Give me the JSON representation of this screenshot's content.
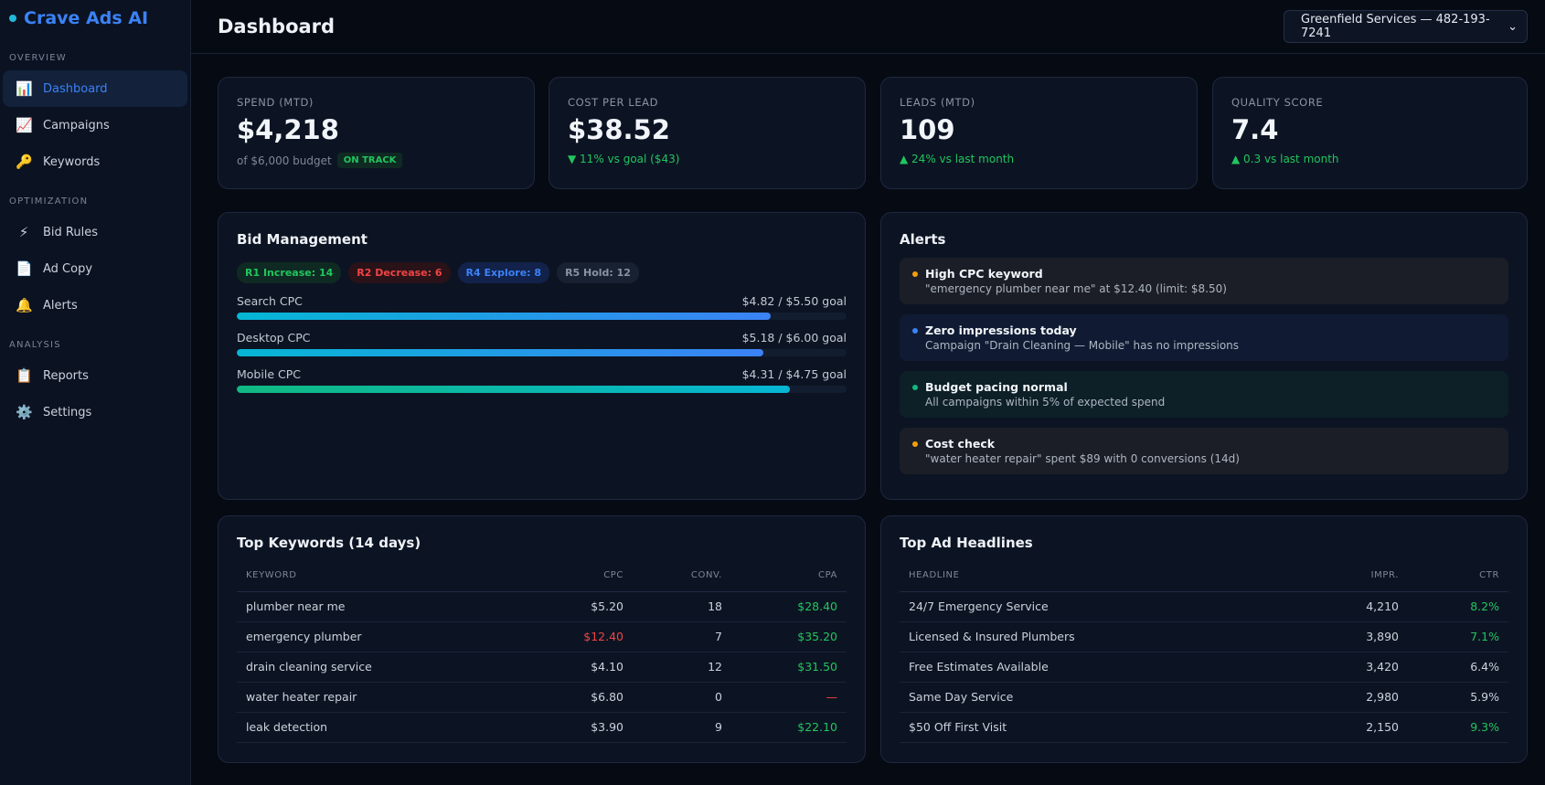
{
  "app": {
    "name": "Crave Ads AI"
  },
  "sidebar": {
    "sections": [
      {
        "title": "OVERVIEW",
        "items": [
          {
            "label": "Dashboard",
            "icon": "📊",
            "active": true
          },
          {
            "label": "Campaigns",
            "icon": "📈"
          },
          {
            "label": "Keywords",
            "icon": "🔑"
          }
        ]
      },
      {
        "title": "OPTIMIZATION",
        "items": [
          {
            "label": "Bid Rules",
            "icon": "⚡"
          },
          {
            "label": "Ad Copy",
            "icon": "📄"
          },
          {
            "label": "Alerts",
            "icon": "🔔"
          }
        ]
      },
      {
        "title": "ANALYSIS",
        "items": [
          {
            "label": "Reports",
            "icon": "📋"
          },
          {
            "label": "Settings",
            "icon": "⚙️"
          }
        ]
      }
    ]
  },
  "header": {
    "title": "Dashboard",
    "account_select": "Greenfield Services — 482-193-7241"
  },
  "kpis": [
    {
      "label": "SPEND (MTD)",
      "value": "$4,218",
      "sub": "of $6,000 budget",
      "badge": "ON TRACK"
    },
    {
      "label": "COST PER LEAD",
      "value": "$38.52",
      "sub": "▼ 11% vs goal ($43)"
    },
    {
      "label": "LEADS (MTD)",
      "value": "109",
      "sub": "▲ 24% vs last month"
    },
    {
      "label": "QUALITY SCORE",
      "value": "7.4",
      "sub": "▲ 0.3 vs last month"
    }
  ],
  "bid": {
    "title": "Bid Management",
    "pills": [
      {
        "label": "R1 Increase: 14",
        "fg": "#22c55e",
        "bg": "#0f2a22"
      },
      {
        "label": "R2 Decrease: 6",
        "fg": "#ef4444",
        "bg": "#2a1219"
      },
      {
        "label": "R4 Explore: 8",
        "fg": "#3b82f6",
        "bg": "#12224a"
      },
      {
        "label": "R5 Hold: 12",
        "fg": "#8a93a3",
        "bg": "#182132"
      }
    ],
    "bars": [
      {
        "label": "Search CPC",
        "value": "$4.82 / $5.50 goal",
        "fraction": 0.876,
        "grad": "linear-gradient(90deg,#06b6d4,#3b82f6)"
      },
      {
        "label": "Desktop CPC",
        "value": "$5.18 / $6.00 goal",
        "fraction": 0.863,
        "grad": "linear-gradient(90deg,#06b6d4,#3b82f6)"
      },
      {
        "label": "Mobile CPC",
        "value": "$4.31 / $4.75 goal",
        "fraction": 0.907,
        "grad": "linear-gradient(90deg,#10b981,#06b6d4)"
      }
    ]
  },
  "alerts": {
    "title": "Alerts",
    "items": [
      {
        "title": "High CPC keyword",
        "desc": "\"emergency plumber near me\" at $12.40 (limit: $8.50)",
        "dot": "#f59e0b",
        "bg": "#1b1e27"
      },
      {
        "title": "Zero impressions today",
        "desc": "Campaign \"Drain Cleaning — Mobile\" has no impressions",
        "dot": "#3b82f6",
        "bg": "#101b33"
      },
      {
        "title": "Budget pacing normal",
        "desc": "All campaigns within 5% of expected spend",
        "dot": "#10b981",
        "bg": "#0d1f27"
      },
      {
        "title": "Cost check",
        "desc": "\"water heater repair\" spent $89 with 0 conversions (14d)",
        "dot": "#f59e0b",
        "bg": "#1b1e27"
      }
    ]
  },
  "keywords": {
    "title": "Top Keywords (14 days)",
    "columns": [
      "KEYWORD",
      "CPC",
      "CONV.",
      "CPA"
    ],
    "rows": [
      [
        "plumber near me",
        "$5.20",
        "18",
        "$28.40"
      ],
      [
        "emergency plumber",
        "$12.40",
        "7",
        "$35.20"
      ],
      [
        "drain cleaning service",
        "$4.10",
        "12",
        "$31.50"
      ],
      [
        "water heater repair",
        "$6.80",
        "0",
        "—"
      ],
      [
        "leak detection",
        "$3.90",
        "9",
        "$22.10"
      ]
    ]
  },
  "headlines": {
    "title": "Top Ad Headlines",
    "columns": [
      "HEADLINE",
      "IMPR.",
      "CTR"
    ],
    "rows": [
      [
        "24/7 Emergency Service",
        "4,210",
        "8.2%"
      ],
      [
        "Licensed & Insured Plumbers",
        "3,890",
        "7.1%"
      ],
      [
        "Free Estimates Available",
        "3,420",
        "6.4%"
      ],
      [
        "Same Day Service",
        "2,980",
        "5.9%"
      ],
      [
        "$50 Off First Visit",
        "2,150",
        "9.3%"
      ]
    ]
  }
}
